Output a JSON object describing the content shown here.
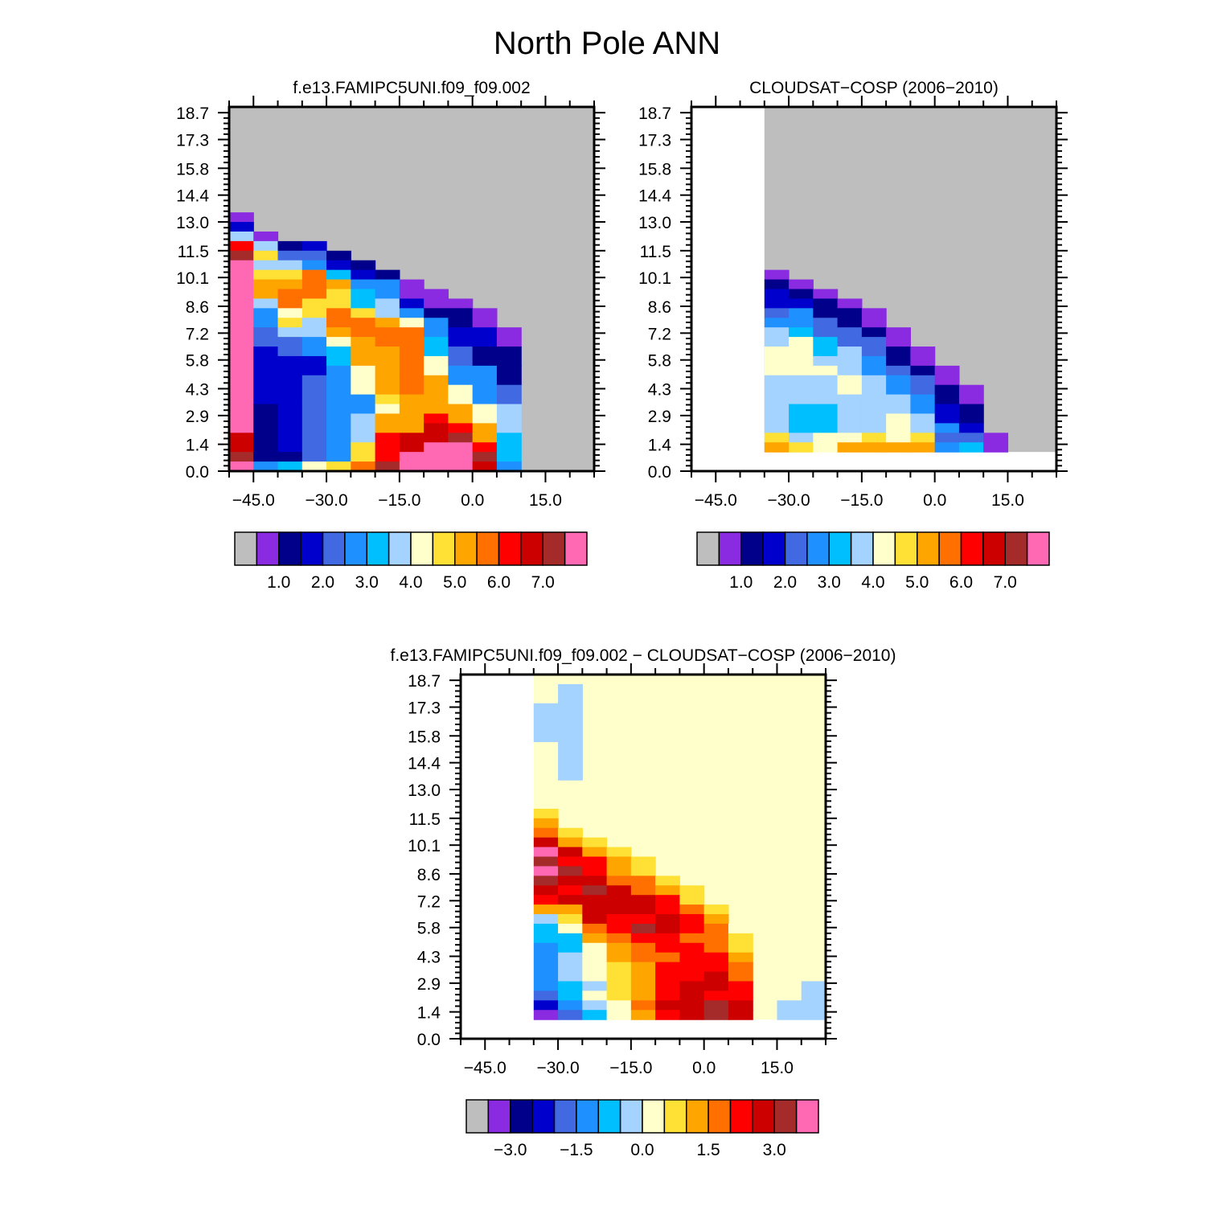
{
  "page_title": "North Pole ANN",
  "chart_data": [
    {
      "type": "heatmap",
      "title": "f.e13.FAMIPC5UNI.f09_f09.002",
      "x_range": [
        -50,
        25
      ],
      "y_range": [
        0.0,
        19.0
      ],
      "x_ticks": [
        "-45.0",
        "-30.0",
        "-15.0",
        "0.0",
        "15.0"
      ],
      "y_ticks": [
        "18.7",
        "17.3",
        "15.8",
        "14.4",
        "13.0",
        "11.5",
        "10.1",
        "8.6",
        "7.2",
        "5.8",
        "4.3",
        "2.9",
        "1.4",
        "0.0"
      ],
      "colorbar": {
        "colors": [
          "#bebebe",
          "#8a2be2",
          "#00008b",
          "#0000cd",
          "#4169e1",
          "#1e90ff",
          "#00bfff",
          "#a4d3ff",
          "#ffffcc",
          "#ffe135",
          "#ffa500",
          "#ff7000",
          "#ff0000",
          "#cd0000",
          "#a52a2a",
          "#ff69b4"
        ],
        "labels": [
          "1.0",
          "2.0",
          "3.0",
          "4.0",
          "5.0",
          "6.0",
          "7.0"
        ]
      }
    },
    {
      "type": "heatmap",
      "title": "CLOUDSAT−COSP (2006−2010)",
      "x_range": [
        -50,
        25
      ],
      "y_range": [
        0.0,
        19.0
      ],
      "x_ticks": [
        "-45.0",
        "-30.0",
        "-15.0",
        "0.0",
        "15.0"
      ],
      "y_ticks": [
        "18.7",
        "17.3",
        "15.8",
        "14.4",
        "13.0",
        "11.5",
        "10.1",
        "8.6",
        "7.2",
        "5.8",
        "4.3",
        "2.9",
        "1.4",
        "0.0"
      ],
      "colorbar": {
        "colors": [
          "#bebebe",
          "#8a2be2",
          "#00008b",
          "#0000cd",
          "#4169e1",
          "#1e90ff",
          "#00bfff",
          "#a4d3ff",
          "#ffffcc",
          "#ffe135",
          "#ffa500",
          "#ff7000",
          "#ff0000",
          "#cd0000",
          "#a52a2a",
          "#ff69b4"
        ],
        "labels": [
          "1.0",
          "2.0",
          "3.0",
          "4.0",
          "5.0",
          "6.0",
          "7.0"
        ]
      }
    },
    {
      "type": "heatmap",
      "title": "f.e13.FAMIPC5UNI.f09_f09.002 − CLOUDSAT−COSP (2006−2010)",
      "x_range": [
        -50,
        25
      ],
      "y_range": [
        0.0,
        19.0
      ],
      "x_ticks": [
        "-45.0",
        "-30.0",
        "-15.0",
        "0.0",
        "15.0"
      ],
      "y_ticks": [
        "18.7",
        "17.3",
        "15.8",
        "14.4",
        "13.0",
        "11.5",
        "10.1",
        "8.6",
        "7.2",
        "5.8",
        "4.3",
        "2.9",
        "1.4",
        "0.0"
      ],
      "colorbar": {
        "colors": [
          "#bebebe",
          "#8a2be2",
          "#00008b",
          "#0000cd",
          "#4169e1",
          "#1e90ff",
          "#00bfff",
          "#a4d3ff",
          "#ffffcc",
          "#ffe135",
          "#ffa500",
          "#ff7000",
          "#ff0000",
          "#cd0000",
          "#a52a2a",
          "#ff69b4"
        ],
        "labels": [
          "−3.0",
          "−1.5",
          "0.0",
          "1.5",
          "3.0"
        ]
      }
    }
  ]
}
